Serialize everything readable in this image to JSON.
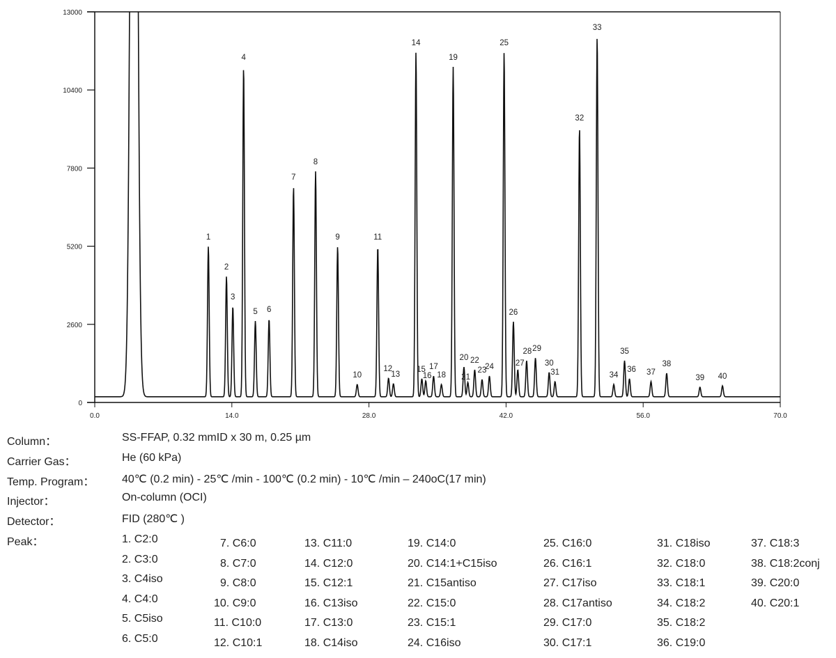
{
  "chart_data": {
    "type": "line",
    "title": "",
    "xlabel": "",
    "ylabel": "",
    "xlim": [
      0,
      70
    ],
    "ylim": [
      0,
      13000
    ],
    "x_ticks": [
      "0.0",
      "14.0",
      "28.0",
      "42.0",
      "56.0",
      "70.0"
    ],
    "y_ticks": [
      "0",
      "2600",
      "5200",
      "7800",
      "10400",
      "13000"
    ],
    "baseline": 190,
    "solvent_peak": {
      "time": 4.0,
      "height": 40000
    },
    "peaks": [
      {
        "label": "1",
        "time": 11.6,
        "height": 5190
      },
      {
        "label": "2",
        "time": 13.45,
        "height": 4195
      },
      {
        "label": "3",
        "time": 14.1,
        "height": 3200
      },
      {
        "label": "4",
        "time": 15.2,
        "height": 11170
      },
      {
        "label": "5",
        "time": 16.4,
        "height": 2710
      },
      {
        "label": "6",
        "time": 17.8,
        "height": 2780
      },
      {
        "label": "7",
        "time": 20.3,
        "height": 7180
      },
      {
        "label": "8",
        "time": 22.55,
        "height": 7690
      },
      {
        "label": "9",
        "time": 24.8,
        "height": 5190
      },
      {
        "label": "10",
        "time": 26.8,
        "height": 600
      },
      {
        "label": "11",
        "time": 28.9,
        "height": 5190
      },
      {
        "label": "12",
        "time": 30.0,
        "height": 810
      },
      {
        "label": "13",
        "time": 30.5,
        "height": 625
      },
      {
        "label": "14",
        "time": 32.8,
        "height": 11660
      },
      {
        "label": "15",
        "time": 33.4,
        "height": 790
      },
      {
        "label": "16",
        "time": 33.8,
        "height": 720
      },
      {
        "label": "17",
        "time": 34.6,
        "height": 880
      },
      {
        "label": "18",
        "time": 35.4,
        "height": 600
      },
      {
        "label": "19",
        "time": 36.6,
        "height": 11170
      },
      {
        "label": "20",
        "time": 37.7,
        "height": 1180
      },
      {
        "label": "21",
        "time": 38.1,
        "height": 670
      },
      {
        "label": "22",
        "time": 38.8,
        "height": 1090
      },
      {
        "label": "23",
        "time": 39.55,
        "height": 765
      },
      {
        "label": "24",
        "time": 40.3,
        "height": 880
      },
      {
        "label": "25",
        "time": 41.8,
        "height": 11660
      },
      {
        "label": "26",
        "time": 42.75,
        "height": 2690
      },
      {
        "label": "27",
        "time": 43.2,
        "height": 1090
      },
      {
        "label": "28",
        "time": 44.1,
        "height": 1390
      },
      {
        "label": "29",
        "time": 45.0,
        "height": 1480
      },
      {
        "label": "30",
        "time": 46.4,
        "height": 1000
      },
      {
        "label": "31",
        "time": 47.0,
        "height": 695
      },
      {
        "label": "32",
        "time": 49.5,
        "height": 9150
      },
      {
        "label": "33",
        "time": 51.3,
        "height": 12170
      },
      {
        "label": "34",
        "time": 53.0,
        "height": 600
      },
      {
        "label": "35",
        "time": 54.1,
        "height": 1390
      },
      {
        "label": "36",
        "time": 54.6,
        "height": 790
      },
      {
        "label": "37",
        "time": 56.8,
        "height": 695
      },
      {
        "label": "38",
        "time": 58.4,
        "height": 975
      },
      {
        "label": "39",
        "time": 61.8,
        "height": 510
      },
      {
        "label": "40",
        "time": 64.1,
        "height": 555
      }
    ]
  },
  "conditions": {
    "column": {
      "label": "Column：",
      "value": "SS-FFAP, 0.32 mmID x 30 m, 0.25 µm"
    },
    "carrier": {
      "label": "Carrier Gas：",
      "value": "He (60 kPa)"
    },
    "temp": {
      "label": "Temp. Program：",
      "value": "40℃ (0.2 min) - 25℃ /min - 100℃ (0.2 min) - 10℃ /min – 240oC(17 min)"
    },
    "injector": {
      "label": "Injector：",
      "value": "On-column (OCI)"
    },
    "detector": {
      "label": "Detector：",
      "value": "FID (280℃ )"
    },
    "peak": {
      "label": "Peak："
    }
  },
  "peak_list": [
    "1. C2:0",
    "2. C3:0",
    "3. C4iso",
    "4. C4:0",
    "5. C5iso",
    "6. C5:0",
    "7. C6:0",
    "8. C7:0",
    "9. C8:0",
    "10. C9:0",
    "11. C10:0",
    "12. C10:1",
    "13. C11:0",
    "14. C12:0",
    "15. C12:1",
    "16. C13iso",
    "17. C13:0",
    "18. C14iso",
    "19. C14:0",
    "20. C14:1+C15iso",
    "21. C15antiso",
    "22. C15:0",
    "23. C15:1",
    "24. C16iso",
    "25. C16:0",
    "26. C16:1",
    "27. C17iso",
    "28. C17antiso",
    "29. C17:0",
    "30. C17:1",
    "31. C18iso",
    "32. C18:0",
    "33. C18:1",
    "34. C18:2",
    "35. C18:2",
    "36. C19:0",
    "37. C18:3",
    "38. C18:2conj",
    "39. C20:0",
    "40. C20:1"
  ]
}
